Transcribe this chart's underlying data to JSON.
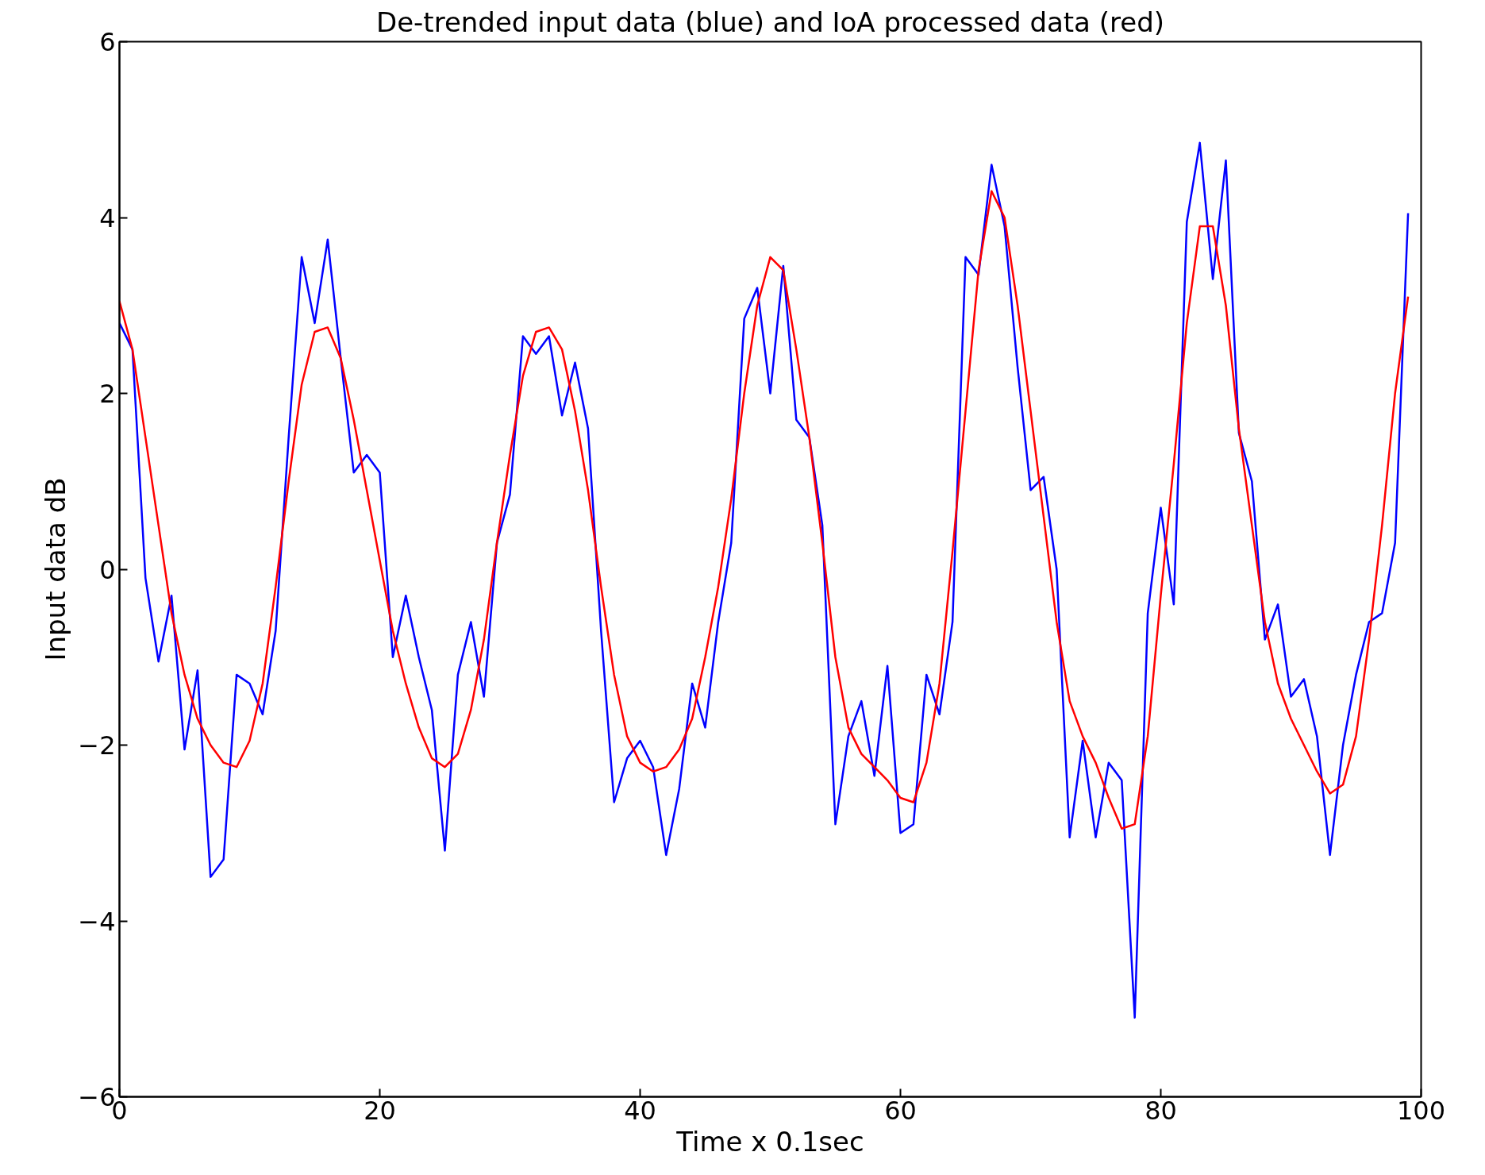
{
  "chart_data": {
    "type": "line",
    "title": "De-trended input data (blue) and IoA processed data (red)",
    "xlabel": "Time x 0.1sec",
    "ylabel": "Input data dB",
    "xlim": [
      0,
      100
    ],
    "ylim": [
      -6,
      6
    ],
    "xticks": [
      0,
      20,
      40,
      60,
      80,
      100
    ],
    "yticks": [
      {
        "value": -6,
        "label": "−6"
      },
      {
        "value": -4,
        "label": "−4"
      },
      {
        "value": -2,
        "label": "−2"
      },
      0,
      2,
      4,
      6
    ],
    "grid": false,
    "marker": "none",
    "line_style": "solid",
    "x": [
      0,
      1,
      2,
      3,
      4,
      5,
      6,
      7,
      8,
      9,
      10,
      11,
      12,
      13,
      14,
      15,
      16,
      17,
      18,
      19,
      20,
      21,
      22,
      23,
      24,
      25,
      26,
      27,
      28,
      29,
      30,
      31,
      32,
      33,
      34,
      35,
      36,
      37,
      38,
      39,
      40,
      41,
      42,
      43,
      44,
      45,
      46,
      47,
      48,
      49,
      50,
      51,
      52,
      53,
      54,
      55,
      56,
      57,
      58,
      59,
      60,
      61,
      62,
      63,
      64,
      65,
      66,
      67,
      68,
      69,
      70,
      71,
      72,
      73,
      74,
      75,
      76,
      77,
      78,
      79,
      80,
      81,
      82,
      83,
      84,
      85,
      86,
      87,
      88,
      89,
      90,
      91,
      92,
      93,
      94,
      95,
      96,
      97,
      98,
      99
    ],
    "series": [
      {
        "color": "#0000ff",
        "values": [
          2.8,
          2.5,
          -0.1,
          -1.05,
          -0.3,
          -2.05,
          -1.15,
          -3.5,
          -3.3,
          -1.2,
          -1.3,
          -1.65,
          -0.7,
          1.5,
          3.55,
          2.8,
          3.75,
          2.4,
          1.1,
          1.3,
          1.1,
          -1.0,
          -0.3,
          -1.0,
          -1.6,
          -3.2,
          -1.2,
          -0.6,
          -1.45,
          0.3,
          0.85,
          2.65,
          2.45,
          2.65,
          1.75,
          2.35,
          1.6,
          -0.7,
          -2.65,
          -2.15,
          -1.95,
          -2.25,
          -3.25,
          -2.5,
          -1.3,
          -1.8,
          -0.6,
          0.3,
          2.85,
          3.2,
          2.0,
          3.45,
          1.7,
          1.5,
          0.5,
          -2.9,
          -1.9,
          -1.5,
          -2.35,
          -1.1,
          -3.0,
          -2.9,
          -1.2,
          -1.65,
          -0.6,
          3.55,
          3.35,
          4.6,
          3.9,
          2.3,
          0.9,
          1.05,
          0.0,
          -3.05,
          -1.95,
          -3.05,
          -2.2,
          -2.4,
          -5.1,
          -0.5,
          0.7,
          -0.4,
          3.95,
          4.85,
          3.3,
          4.65,
          1.55,
          1.0,
          -0.8,
          -0.4,
          -1.45,
          -1.25,
          -1.9,
          -3.25,
          -2.0,
          -1.2,
          -0.6,
          -0.5,
          0.3,
          4.05
        ]
      },
      {
        "color": "#ff0000",
        "values": [
          3.05,
          2.5,
          1.5,
          0.5,
          -0.5,
          -1.2,
          -1.7,
          -2.0,
          -2.2,
          -2.25,
          -1.95,
          -1.3,
          -0.2,
          1.0,
          2.1,
          2.7,
          2.75,
          2.4,
          1.7,
          0.9,
          0.1,
          -0.7,
          -1.3,
          -1.8,
          -2.15,
          -2.25,
          -2.1,
          -1.6,
          -0.8,
          0.3,
          1.3,
          2.2,
          2.7,
          2.75,
          2.5,
          1.8,
          0.9,
          -0.2,
          -1.2,
          -1.9,
          -2.2,
          -2.3,
          -2.25,
          -2.05,
          -1.7,
          -1.0,
          -0.2,
          0.8,
          2.0,
          3.0,
          3.55,
          3.4,
          2.5,
          1.5,
          0.3,
          -1.0,
          -1.8,
          -2.1,
          -2.25,
          -2.4,
          -2.6,
          -2.65,
          -2.2,
          -1.3,
          0.2,
          1.8,
          3.4,
          4.3,
          4.0,
          3.0,
          1.8,
          0.6,
          -0.6,
          -1.5,
          -1.9,
          -2.2,
          -2.6,
          -2.95,
          -2.9,
          -1.9,
          -0.3,
          1.2,
          2.8,
          3.9,
          3.9,
          3.0,
          1.6,
          0.5,
          -0.6,
          -1.3,
          -1.7,
          -2.0,
          -2.3,
          -2.55,
          -2.45,
          -1.9,
          -0.8,
          0.5,
          2.0,
          3.1
        ]
      }
    ]
  }
}
